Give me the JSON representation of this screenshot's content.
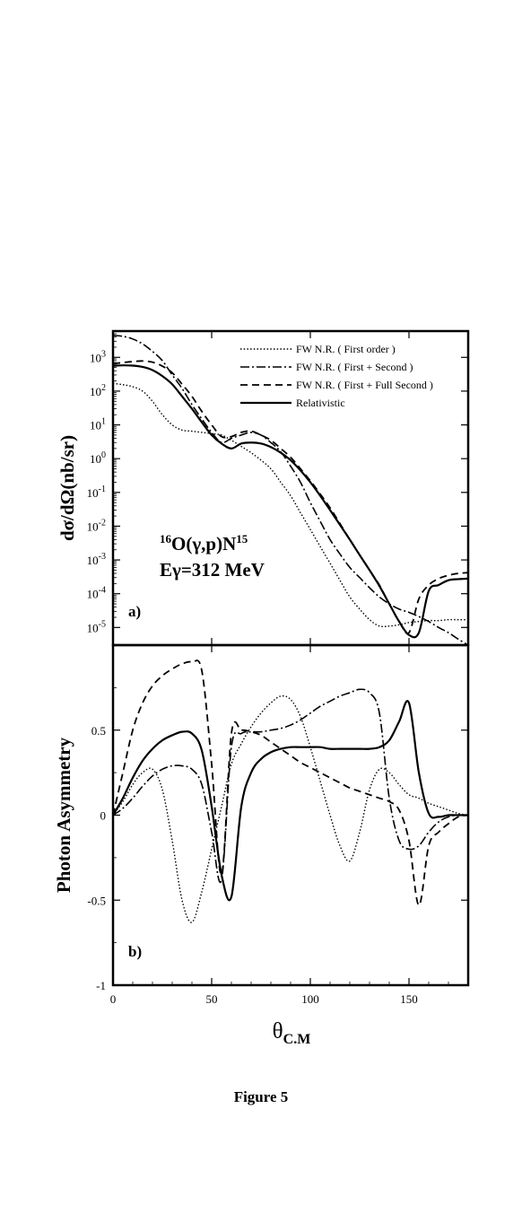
{
  "caption": "Figure 5",
  "legend": {
    "entries": [
      {
        "label": "FW N.R. ( First order )",
        "dash": "1.5,2.2"
      },
      {
        "label": "FW N.R. ( First + Second )",
        "dash": "10,3,2,3"
      },
      {
        "label": "FW N.R. ( First + Full Second )",
        "dash": "8,5"
      },
      {
        "label": "Relativistic",
        "dash": ""
      }
    ]
  },
  "colors": {
    "axis": "#000000",
    "lines": "#000000",
    "background": "#ffffff"
  },
  "chart_data": [
    {
      "type": "line",
      "panel_label": "a)",
      "ylabel": "dσ/dΩ(nb/sr)",
      "annotation": {
        "reaction": "O(γ,p)N",
        "reaction_pre_sup": "16",
        "reaction_post_sup": "15",
        "energy": "Eγ=312 MeV"
      },
      "yscale": "log",
      "xlim": [
        0,
        180
      ],
      "ylim": [
        3e-06,
        6000
      ],
      "ytick_values": [
        1000.0,
        100.0,
        10.0,
        1.0,
        0.1,
        0.01,
        0.001,
        0.0001,
        1e-05
      ],
      "ytick_labels": [
        {
          "base": "10",
          "exp": "3"
        },
        {
          "base": "10",
          "exp": "2"
        },
        {
          "base": "10",
          "exp": "1"
        },
        {
          "base": "10",
          "exp": "0"
        },
        {
          "base": "10",
          "exp": "-1"
        },
        {
          "base": "10",
          "exp": "-2"
        },
        {
          "base": "10",
          "exp": "-3"
        },
        {
          "base": "10",
          "exp": "-4"
        },
        {
          "base": "10",
          "exp": "-5"
        }
      ],
      "series": [
        {
          "name": "FW N.R. ( First order )",
          "x": [
            0,
            5,
            10,
            15,
            20,
            25,
            30,
            35,
            40,
            45,
            50,
            55,
            60,
            65,
            70,
            75,
            80,
            85,
            90,
            95,
            100,
            105,
            110,
            115,
            120,
            125,
            130,
            135,
            140,
            145,
            150,
            155,
            160,
            165,
            170,
            175,
            180
          ],
          "y": [
            170,
            155,
            135,
            100,
            50,
            20,
            10,
            7,
            6.5,
            6,
            5.5,
            5,
            3.5,
            2.3,
            1.5,
            0.9,
            0.5,
            0.2,
            0.08,
            0.025,
            0.008,
            0.0025,
            0.0008,
            0.00025,
            8e-05,
            3.5e-05,
            1.7e-05,
            1.1e-05,
            1.1e-05,
            1.2e-05,
            1.4e-05,
            1.5e-05,
            1.6e-05,
            1.6e-05,
            1.7e-05,
            1.7e-05,
            1.7e-05
          ]
        },
        {
          "name": "FW N.R. ( First + Second )",
          "x": [
            0,
            5,
            10,
            15,
            20,
            25,
            30,
            35,
            40,
            45,
            50,
            55,
            60,
            65,
            70,
            75,
            80,
            85,
            90,
            95,
            100,
            105,
            110,
            115,
            120,
            125,
            130,
            135,
            140,
            145,
            150,
            155,
            160,
            165,
            170,
            175,
            180
          ],
          "y": [
            4500,
            4200,
            3500,
            2500,
            1500,
            800,
            300,
            120,
            40,
            15,
            6,
            3,
            4,
            5,
            6,
            5,
            3,
            1.6,
            0.6,
            0.2,
            0.05,
            0.014,
            0.004,
            0.0015,
            0.0006,
            0.0003,
            0.00015,
            8e-05,
            5e-05,
            3.5e-05,
            2.8e-05,
            2.1e-05,
            1.5e-05,
            1e-05,
            7e-06,
            4.5e-06,
            3e-06
          ]
        },
        {
          "name": "FW N.R. ( First + Full Second )",
          "x": [
            0,
            5,
            10,
            15,
            20,
            25,
            30,
            35,
            40,
            45,
            50,
            55,
            60,
            65,
            70,
            75,
            80,
            85,
            90,
            95,
            100,
            105,
            110,
            115,
            120,
            125,
            130,
            135,
            140,
            145,
            150,
            155,
            160,
            165,
            170,
            175,
            180
          ],
          "y": [
            650,
            700,
            750,
            780,
            720,
            550,
            350,
            160,
            70,
            25,
            10,
            4.5,
            4.5,
            6,
            6.5,
            5,
            3.5,
            2,
            1.1,
            0.5,
            0.22,
            0.09,
            0.035,
            0.012,
            0.004,
            0.0014,
            0.0005,
            0.00018,
            5e-05,
            1.5e-05,
            7e-06,
            7e-05,
            0.00018,
            0.00028,
            0.00035,
            0.0004,
            0.00042
          ]
        },
        {
          "name": "Relativistic",
          "x": [
            0,
            5,
            10,
            15,
            20,
            25,
            30,
            35,
            40,
            45,
            50,
            55,
            60,
            65,
            70,
            75,
            80,
            85,
            90,
            95,
            100,
            105,
            110,
            115,
            120,
            125,
            130,
            135,
            140,
            145,
            150,
            155,
            160,
            165,
            170,
            175,
            180
          ],
          "y": [
            560,
            580,
            570,
            520,
            420,
            280,
            160,
            70,
            30,
            12,
            5,
            2.8,
            2,
            2.8,
            3,
            2.8,
            2.2,
            1.5,
            0.9,
            0.45,
            0.2,
            0.08,
            0.03,
            0.011,
            0.004,
            0.0014,
            0.0005,
            0.00017,
            5e-05,
            1.5e-05,
            6e-06,
            7e-06,
            0.00012,
            0.00018,
            0.00025,
            0.00027,
            0.00028
          ]
        }
      ]
    },
    {
      "type": "line",
      "panel_label": "b)",
      "ylabel": "Photon Asymmetry",
      "xlabel": "θ",
      "xlabel_sub": "C.M",
      "xlim": [
        0,
        180
      ],
      "ylim": [
        -1,
        1
      ],
      "xtick_values": [
        0,
        50,
        100,
        150
      ],
      "xtick_labels": [
        "0",
        "50",
        "100",
        "150"
      ],
      "ytick_values": [
        0.5,
        0,
        -0.5,
        -1
      ],
      "ytick_labels": [
        "0.5",
        "0",
        "-0.5",
        "-1"
      ],
      "series": [
        {
          "name": "FW N.R. ( First order )",
          "x": [
            0,
            5,
            10,
            15,
            20,
            25,
            30,
            35,
            40,
            45,
            50,
            55,
            60,
            65,
            70,
            75,
            80,
            85,
            90,
            95,
            100,
            105,
            110,
            115,
            120,
            125,
            130,
            135,
            140,
            145,
            150,
            155,
            160,
            165,
            170,
            175,
            180
          ],
          "y": [
            0,
            0.08,
            0.18,
            0.25,
            0.27,
            0.15,
            -0.15,
            -0.5,
            -0.63,
            -0.45,
            -0.2,
            0.05,
            0.3,
            0.42,
            0.52,
            0.6,
            0.66,
            0.7,
            0.68,
            0.58,
            0.4,
            0.2,
            0,
            -0.18,
            -0.27,
            -0.1,
            0.15,
            0.27,
            0.25,
            0.18,
            0.12,
            0.1,
            0.07,
            0.05,
            0.03,
            0.01,
            0
          ]
        },
        {
          "name": "FW N.R. ( First + Second )",
          "x": [
            0,
            5,
            10,
            15,
            20,
            25,
            30,
            35,
            40,
            45,
            50,
            55,
            60,
            65,
            70,
            75,
            80,
            85,
            90,
            95,
            100,
            105,
            110,
            115,
            120,
            125,
            130,
            135,
            140,
            145,
            150,
            155,
            160,
            165,
            170,
            175,
            180
          ],
          "y": [
            0,
            0.04,
            0.1,
            0.17,
            0.23,
            0.27,
            0.29,
            0.29,
            0.27,
            0.18,
            -0.1,
            -0.38,
            0.4,
            0.48,
            0.49,
            0.49,
            0.5,
            0.51,
            0.53,
            0.56,
            0.6,
            0.64,
            0.67,
            0.7,
            0.72,
            0.74,
            0.72,
            0.6,
            0.1,
            -0.15,
            -0.2,
            -0.18,
            -0.1,
            -0.04,
            -0.01,
            0,
            0
          ]
        },
        {
          "name": "FW N.R. ( First + Full Second )",
          "x": [
            0,
            5,
            10,
            15,
            20,
            25,
            30,
            35,
            40,
            45,
            50,
            55,
            60,
            65,
            70,
            75,
            80,
            85,
            90,
            95,
            100,
            105,
            110,
            115,
            120,
            125,
            130,
            135,
            140,
            145,
            150,
            155,
            160,
            165,
            170,
            175,
            180
          ],
          "y": [
            0,
            0.25,
            0.5,
            0.66,
            0.76,
            0.82,
            0.86,
            0.89,
            0.9,
            0.85,
            0.3,
            -0.35,
            0.48,
            0.5,
            0.49,
            0.47,
            0.43,
            0.39,
            0.35,
            0.31,
            0.28,
            0.25,
            0.22,
            0.19,
            0.16,
            0.14,
            0.12,
            0.1,
            0.08,
            0.03,
            -0.15,
            -0.53,
            -0.18,
            -0.1,
            -0.05,
            -0.01,
            0
          ]
        },
        {
          "name": "Relativistic",
          "x": [
            0,
            5,
            10,
            15,
            20,
            25,
            30,
            35,
            40,
            45,
            50,
            55,
            60,
            65,
            70,
            75,
            80,
            85,
            90,
            95,
            100,
            105,
            110,
            115,
            120,
            125,
            130,
            135,
            140,
            145,
            150,
            155,
            160,
            165,
            170,
            175,
            180
          ],
          "y": [
            0,
            0.1,
            0.22,
            0.32,
            0.39,
            0.44,
            0.47,
            0.49,
            0.48,
            0.38,
            0.05,
            -0.35,
            -0.48,
            0.05,
            0.25,
            0.33,
            0.37,
            0.39,
            0.4,
            0.4,
            0.4,
            0.4,
            0.39,
            0.39,
            0.39,
            0.39,
            0.39,
            0.4,
            0.44,
            0.55,
            0.66,
            0.25,
            0.01,
            -0.01,
            0,
            0,
            0
          ]
        }
      ]
    }
  ]
}
